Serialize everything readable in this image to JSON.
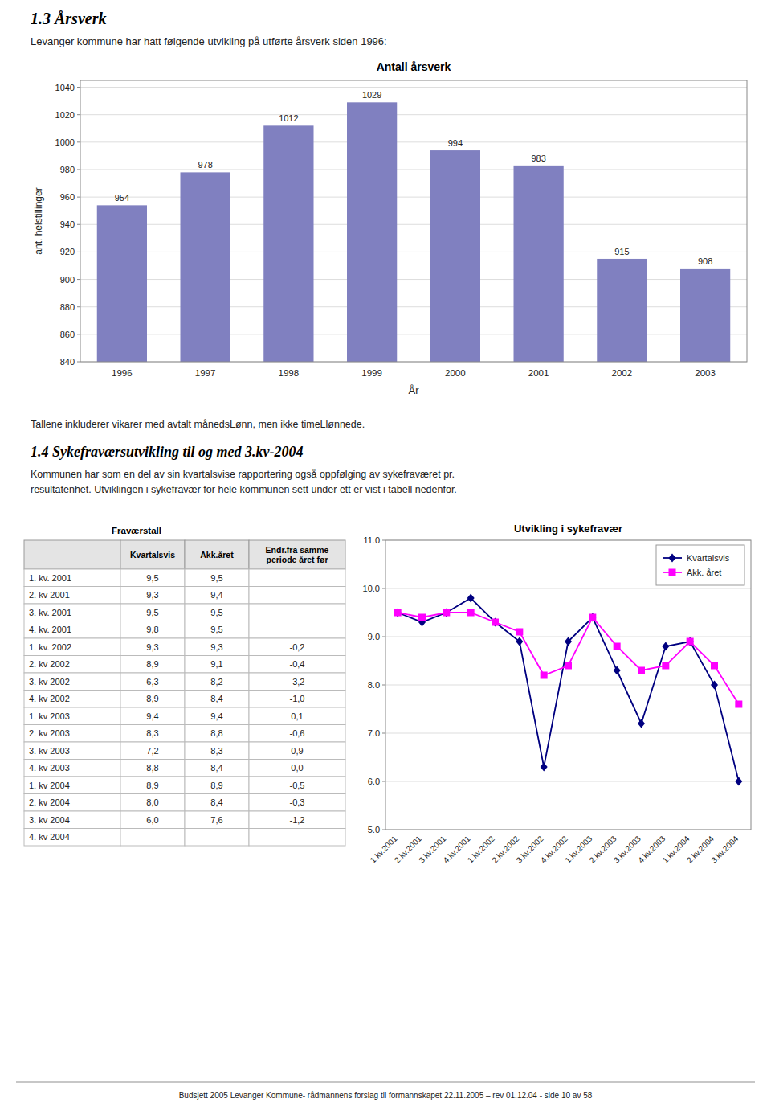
{
  "title": "1.3  Årsverk",
  "subtitle": "Levanger kommune har hatt følgende utvikling på utførte årsverk siden 1996:",
  "footnote": "Tallene inkluderer vikarer med avtalt månedsLønn, men ikke timeLlønnede.",
  "section_title": "1.4  Sykefraværsutvikling til og med 3.kv-2004",
  "section_text": [
    "Kommunen har som en del av sin kvartalsvise rapportering også oppfølging av sykefraværet pr.",
    "resultatenhet. Utviklingen i sykefravær for hele kommunen sett under ett er vist i tabell nedenfor."
  ],
  "footer": "Budsjett 2005 Levanger Kommune- rådmannens forslag til formannskapet 22.11.2005 – rev 01.12.04 - side 10 av 58",
  "chart_data": [
    {
      "type": "bar",
      "title": "Antall årsverk",
      "categories": [
        "1996",
        "1997",
        "1998",
        "1999",
        "2000",
        "2001",
        "2002",
        "2003"
      ],
      "values": [
        954,
        978,
        1012,
        1029,
        994,
        983,
        915,
        908
      ],
      "color": "#8080c0",
      "xlabel": "År",
      "ylabel": "ant. helstillinger",
      "ylim": [
        840,
        1045
      ],
      "yticks": [
        840,
        860,
        880,
        900,
        920,
        940,
        960,
        980,
        1000,
        1020,
        1040
      ],
      "grid": true,
      "data_labels": true
    },
    {
      "type": "line",
      "title": "Utvikling i sykefravær",
      "categories": [
        "1.kv.2001",
        "2.kv.2001",
        "3.kv.2001",
        "4.kv.2001",
        "1.kv.2002",
        "2.kv.2002",
        "3.kv.2002",
        "4.kv.2002",
        "1.kv.2003",
        "2.kv.2003",
        "3.kv.2003",
        "4.kv.2003",
        "1.kv.2004",
        "2.kv.2004",
        "3.kv.2004"
      ],
      "series": [
        {
          "name": "Kvartalsvis",
          "color": "#000080",
          "marker": "diamond",
          "values": [
            9.5,
            9.3,
            9.5,
            9.8,
            9.3,
            8.9,
            6.3,
            8.9,
            9.4,
            8.3,
            7.2,
            8.8,
            8.9,
            8.0,
            6.0
          ]
        },
        {
          "name": "Akk. året",
          "color": "#ff00ff",
          "marker": "square",
          "values": [
            9.5,
            9.4,
            9.5,
            9.5,
            9.3,
            9.1,
            8.2,
            8.4,
            9.4,
            8.8,
            8.3,
            8.4,
            8.9,
            8.4,
            7.6
          ]
        }
      ],
      "ylim": [
        5.0,
        11.0
      ],
      "yticks": [
        {
          "value": 5.0,
          "label": "5.0"
        },
        {
          "value": 6.0,
          "label": "6.0"
        },
        {
          "value": 7.0,
          "label": "7.0"
        },
        {
          "value": 8.0,
          "label": "8.0"
        },
        {
          "value": 9.0,
          "label": "9.0"
        },
        {
          "value": 10.0,
          "label": "10.0"
        },
        {
          "value": 11.0,
          "label": "11.0"
        }
      ],
      "grid": true,
      "legend": "upper right"
    },
    {
      "type": "table",
      "group_label": "Fraværstall",
      "columns": [
        null,
        "Kvartalsvis",
        "Akk.året",
        "Endr.fra samme\nperiode året før"
      ],
      "rows": [
        [
          "1. kv. 2001",
          "9,5",
          "9,5",
          null
        ],
        [
          "2. kv 2001",
          "9,3",
          "9,4",
          null
        ],
        [
          "3. kv. 2001",
          "9,5",
          "9,5",
          null
        ],
        [
          "4. kv. 2001",
          "9,8",
          "9,5",
          null
        ],
        [
          "1. kv. 2002",
          "9,3",
          "9,3",
          "-0,2"
        ],
        [
          "2. kv 2002",
          "8,9",
          "9,1",
          "-0,4"
        ],
        [
          "3. kv 2002",
          "6,3",
          "8,2",
          "-3,2"
        ],
        [
          "4. kv 2002",
          "8,9",
          "8,4",
          "-1,0"
        ],
        [
          "1. kv 2003",
          "9,4",
          "9,4",
          "0,1"
        ],
        [
          "2. kv 2003",
          "8,3",
          "8,8",
          "-0,6"
        ],
        [
          "3. kv 2003",
          "7,2",
          "8,3",
          "0,9"
        ],
        [
          "4. kv 2003",
          "8,8",
          "8,4",
          "0,0"
        ],
        [
          "1. kv 2004",
          "8,9",
          "8,9",
          "-0,5"
        ],
        [
          "2. kv 2004",
          "8,0",
          "8,4",
          "-0,3"
        ],
        [
          "3. kv 2004",
          "6,0",
          "7,6",
          "-1,2"
        ],
        [
          "4. kv 2004",
          null,
          null,
          null
        ]
      ]
    }
  ]
}
